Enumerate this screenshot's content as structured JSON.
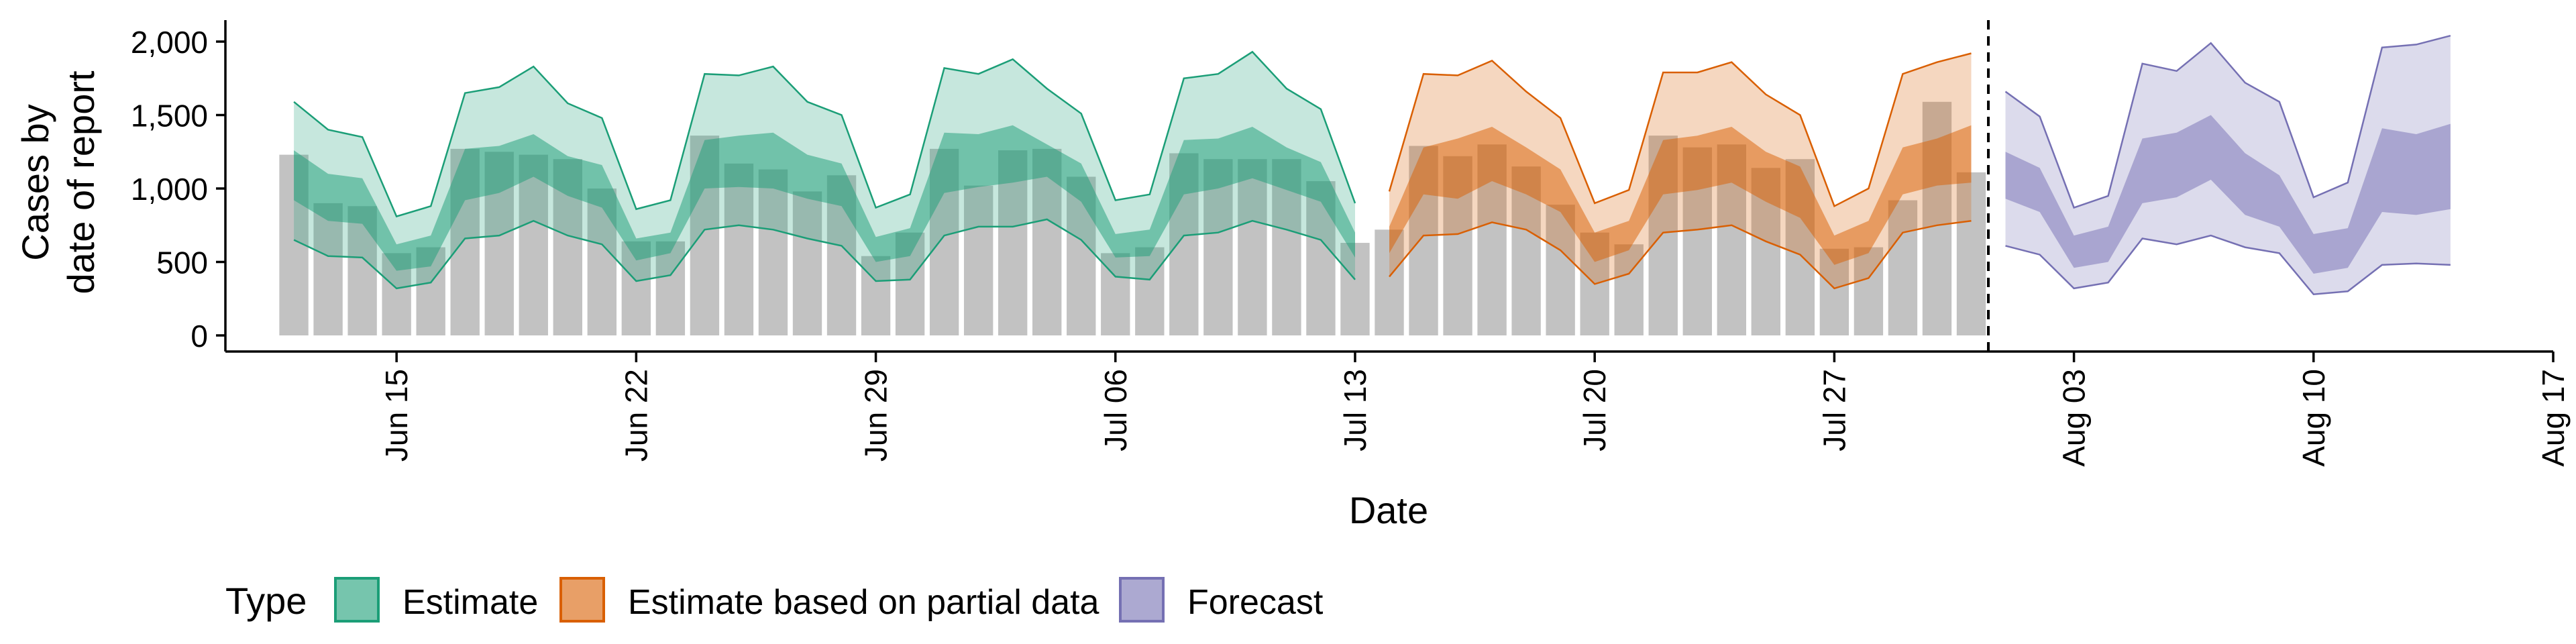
{
  "chart_data": {
    "type": "bar",
    "xlabel": "Date",
    "ylabel_lines": [
      "Cases by",
      "date of report"
    ],
    "ylim": [
      0,
      2000
    ],
    "y_ticks": [
      0,
      500,
      1000,
      1500,
      2000
    ],
    "y_tick_labels": [
      "0",
      "500",
      "1,000",
      "1,500",
      "2,000"
    ],
    "x_range": [
      "2020-06-10",
      "2020-08-17"
    ],
    "x_ticks": [
      "2020-06-15",
      "2020-06-22",
      "2020-06-29",
      "2020-07-06",
      "2020-07-13",
      "2020-07-20",
      "2020-07-27",
      "2020-08-03",
      "2020-08-10",
      "2020-08-17"
    ],
    "x_tick_labels": [
      "Jun 15",
      "Jun 22",
      "Jun 29",
      "Jul 06",
      "Jul 13",
      "Jul 20",
      "Jul 27",
      "Aug 03",
      "Aug 10",
      "Aug 17"
    ],
    "grid": false,
    "legend": {
      "title": "Type",
      "position": "bottom",
      "entries": [
        {
          "label": "Estimate",
          "color": "#1b9e77"
        },
        {
          "label": "Estimate based on partial data",
          "color": "#d95f02"
        },
        {
          "label": "Forecast",
          "color": "#7570b3"
        }
      ]
    },
    "vline_date": "2020-07-31",
    "bar_color": "#c2c2c2",
    "observed_cases": {
      "dates": [
        "2020-06-12",
        "2020-06-13",
        "2020-06-14",
        "2020-06-15",
        "2020-06-16",
        "2020-06-17",
        "2020-06-18",
        "2020-06-19",
        "2020-06-20",
        "2020-06-21",
        "2020-06-22",
        "2020-06-23",
        "2020-06-24",
        "2020-06-25",
        "2020-06-26",
        "2020-06-27",
        "2020-06-28",
        "2020-06-29",
        "2020-06-30",
        "2020-07-01",
        "2020-07-02",
        "2020-07-03",
        "2020-07-04",
        "2020-07-05",
        "2020-07-06",
        "2020-07-07",
        "2020-07-08",
        "2020-07-09",
        "2020-07-10",
        "2020-07-11",
        "2020-07-12",
        "2020-07-13",
        "2020-07-14",
        "2020-07-15",
        "2020-07-16",
        "2020-07-17",
        "2020-07-18",
        "2020-07-19",
        "2020-07-20",
        "2020-07-21",
        "2020-07-22",
        "2020-07-23",
        "2020-07-24",
        "2020-07-25",
        "2020-07-26",
        "2020-07-27",
        "2020-07-28",
        "2020-07-29",
        "2020-07-30",
        "2020-07-31"
      ],
      "values": [
        1230,
        900,
        880,
        560,
        600,
        1270,
        1250,
        1230,
        1200,
        1000,
        640,
        640,
        1360,
        1170,
        1130,
        980,
        1090,
        540,
        700,
        1270,
        1020,
        1260,
        1270,
        1080,
        560,
        600,
        1240,
        1200,
        1200,
        1200,
        1050,
        630,
        720,
        1290,
        1220,
        1300,
        1150,
        890,
        700,
        620,
        1360,
        1280,
        1300,
        1140,
        1200,
        590,
        600,
        920,
        1590,
        1110
      ]
    },
    "series": [
      {
        "name": "Estimate",
        "color": "#1b9e77",
        "dates": [
          "2020-06-12",
          "2020-06-13",
          "2020-06-14",
          "2020-06-15",
          "2020-06-16",
          "2020-06-17",
          "2020-06-18",
          "2020-06-19",
          "2020-06-20",
          "2020-06-21",
          "2020-06-22",
          "2020-06-23",
          "2020-06-24",
          "2020-06-25",
          "2020-06-26",
          "2020-06-27",
          "2020-06-28",
          "2020-06-29",
          "2020-06-30",
          "2020-07-01",
          "2020-07-02",
          "2020-07-03",
          "2020-07-04",
          "2020-07-05",
          "2020-07-06",
          "2020-07-07",
          "2020-07-08",
          "2020-07-09",
          "2020-07-10",
          "2020-07-11",
          "2020-07-12",
          "2020-07-13"
        ],
        "lower_90": [
          650,
          540,
          530,
          320,
          360,
          660,
          680,
          780,
          680,
          620,
          370,
          410,
          720,
          750,
          720,
          660,
          610,
          370,
          380,
          680,
          740,
          740,
          790,
          650,
          400,
          380,
          680,
          700,
          780,
          720,
          650,
          380
        ],
        "upper_90": [
          1590,
          1400,
          1350,
          810,
          880,
          1650,
          1690,
          1830,
          1580,
          1480,
          860,
          920,
          1780,
          1770,
          1830,
          1590,
          1500,
          870,
          960,
          1820,
          1780,
          1880,
          1680,
          1510,
          920,
          960,
          1750,
          1780,
          1930,
          1680,
          1540,
          900
        ],
        "lower_50": [
          920,
          780,
          760,
          440,
          470,
          920,
          970,
          1080,
          950,
          870,
          510,
          560,
          1000,
          1010,
          1000,
          930,
          880,
          500,
          540,
          970,
          1010,
          1040,
          1080,
          910,
          530,
          540,
          960,
          1000,
          1070,
          990,
          910,
          530
        ],
        "upper_50": [
          1260,
          1100,
          1070,
          620,
          680,
          1270,
          1290,
          1370,
          1220,
          1160,
          660,
          700,
          1330,
          1360,
          1380,
          1230,
          1170,
          670,
          730,
          1380,
          1370,
          1430,
          1300,
          1170,
          690,
          720,
          1330,
          1340,
          1420,
          1280,
          1180,
          700
        ]
      },
      {
        "name": "Estimate based on partial data",
        "color": "#d95f02",
        "dates": [
          "2020-07-14",
          "2020-07-15",
          "2020-07-16",
          "2020-07-17",
          "2020-07-18",
          "2020-07-19",
          "2020-07-20",
          "2020-07-21",
          "2020-07-22",
          "2020-07-23",
          "2020-07-24",
          "2020-07-25",
          "2020-07-26",
          "2020-07-27",
          "2020-07-28",
          "2020-07-29",
          "2020-07-30",
          "2020-07-31"
        ],
        "lower_90": [
          400,
          680,
          690,
          770,
          720,
          580,
          350,
          420,
          700,
          720,
          750,
          640,
          550,
          320,
          390,
          700,
          750,
          780
        ],
        "upper_90": [
          980,
          1780,
          1770,
          1870,
          1660,
          1480,
          900,
          990,
          1790,
          1790,
          1860,
          1640,
          1500,
          880,
          1000,
          1780,
          1860,
          1920
        ],
        "lower_50": [
          560,
          960,
          930,
          1050,
          960,
          840,
          500,
          580,
          960,
          990,
          1040,
          910,
          800,
          480,
          560,
          960,
          1020,
          1040
        ],
        "upper_50": [
          740,
          1280,
          1340,
          1420,
          1280,
          1130,
          700,
          780,
          1330,
          1360,
          1420,
          1250,
          1150,
          680,
          780,
          1280,
          1340,
          1430
        ]
      },
      {
        "name": "Forecast",
        "color": "#7570b3",
        "dates": [
          "2020-08-01",
          "2020-08-02",
          "2020-08-03",
          "2020-08-04",
          "2020-08-05",
          "2020-08-06",
          "2020-08-07",
          "2020-08-08",
          "2020-08-09",
          "2020-08-10",
          "2020-08-11",
          "2020-08-12",
          "2020-08-13",
          "2020-08-14"
        ],
        "lower_90": [
          610,
          550,
          320,
          360,
          660,
          620,
          680,
          600,
          560,
          280,
          300,
          480,
          490,
          480
        ],
        "upper_90": [
          1660,
          1490,
          870,
          950,
          1850,
          1800,
          1990,
          1720,
          1590,
          940,
          1040,
          1960,
          1980,
          2040
        ],
        "lower_50": [
          930,
          840,
          460,
          500,
          900,
          940,
          1060,
          820,
          740,
          420,
          460,
          840,
          820,
          860
        ],
        "upper_50": [
          1250,
          1140,
          680,
          740,
          1340,
          1380,
          1500,
          1240,
          1090,
          690,
          730,
          1410,
          1370,
          1440
        ]
      }
    ]
  }
}
